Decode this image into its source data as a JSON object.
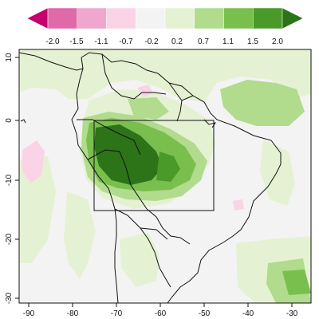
{
  "colorbar": {
    "ticks": [
      "-2.0",
      "-1.5",
      "-1.1",
      "-0.7",
      "-0.2",
      "0.2",
      "0.7",
      "1.1",
      "1.5",
      "2.0"
    ],
    "colors": [
      "#c5006f",
      "#e06aa7",
      "#efa7cd",
      "#fbd3e6",
      "#f3f3f3",
      "#e4f2d3",
      "#b1db8d",
      "#79bf4e",
      "#4a9a2a",
      "#2d7419"
    ]
  },
  "map": {
    "x_tick_labels": [
      "-90",
      "-80",
      "-70",
      "-60",
      "-50",
      "-40",
      "-30"
    ],
    "y_tick_labels": [
      "10",
      "0",
      "-10",
      "-20",
      "-30"
    ],
    "lon_range": [
      -92,
      -28
    ],
    "lat_range": [
      -33,
      12
    ],
    "box_region": {
      "lon": [
        -76,
        -50
      ],
      "lat": [
        -15,
        0
      ]
    },
    "background_color": "#f3f3f3"
  }
}
